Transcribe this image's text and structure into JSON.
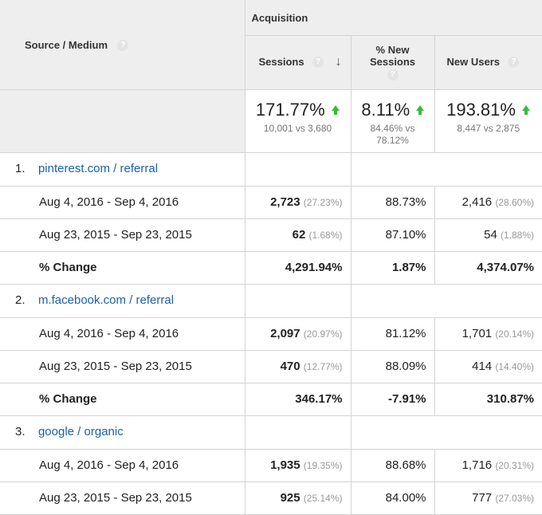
{
  "header": {
    "dimension_label": "Source / Medium",
    "group_label": "Acquisition",
    "columns": {
      "sessions": "Sessions",
      "new_sessions": "% New Sessions",
      "new_users": "New Users"
    },
    "help_glyph": "?"
  },
  "summary": {
    "sessions": {
      "change": "171.77%",
      "compare": "10,001 vs 3,680"
    },
    "new_sessions": {
      "change": "8.11%",
      "compare": "84.46% vs 78.12%"
    },
    "new_users": {
      "change": "193.81%",
      "compare": "8,447 vs 2,875"
    }
  },
  "sources": [
    {
      "index": "1.",
      "name": "pinterest.com / referral",
      "rows": [
        {
          "label": "Aug 4, 2016 - Sep 4, 2016",
          "sessions": "2,723",
          "sessions_pct": "(27.23%)",
          "new_sessions": "88.73%",
          "new_users": "2,416",
          "new_users_pct": "(28.60%)"
        },
        {
          "label": "Aug 23, 2015 - Sep 23, 2015",
          "sessions": "62",
          "sessions_pct": "(1.68%)",
          "new_sessions": "87.10%",
          "new_users": "54",
          "new_users_pct": "(1.88%)"
        },
        {
          "label": "% Change",
          "sessions": "4,291.94%",
          "new_sessions": "1.87%",
          "new_users": "4,374.07%"
        }
      ]
    },
    {
      "index": "2.",
      "name": "m.facebook.com / referral",
      "rows": [
        {
          "label": "Aug 4, 2016 - Sep 4, 2016",
          "sessions": "2,097",
          "sessions_pct": "(20.97%)",
          "new_sessions": "81.12%",
          "new_users": "1,701",
          "new_users_pct": "(20.14%)"
        },
        {
          "label": "Aug 23, 2015 - Sep 23, 2015",
          "sessions": "470",
          "sessions_pct": "(12.77%)",
          "new_sessions": "88.09%",
          "new_users": "414",
          "new_users_pct": "(14.40%)"
        },
        {
          "label": "% Change",
          "sessions": "346.17%",
          "new_sessions": "-7.91%",
          "new_users": "310.87%"
        }
      ]
    },
    {
      "index": "3.",
      "name": "google / organic",
      "rows": [
        {
          "label": "Aug 4, 2016 - Sep 4, 2016",
          "sessions": "1,935",
          "sessions_pct": "(19.35%)",
          "new_sessions": "88.68%",
          "new_users": "1,716",
          "new_users_pct": "(20.31%)"
        },
        {
          "label": "Aug 23, 2015 - Sep 23, 2015",
          "sessions": "925",
          "sessions_pct": "(25.14%)",
          "new_sessions": "84.00%",
          "new_users": "777",
          "new_users_pct": "(27.03%)"
        }
      ]
    }
  ],
  "colors": {
    "link": "#1a62a8",
    "up_arrow": "#3cba3c",
    "header_bg": "#eeeeee"
  }
}
